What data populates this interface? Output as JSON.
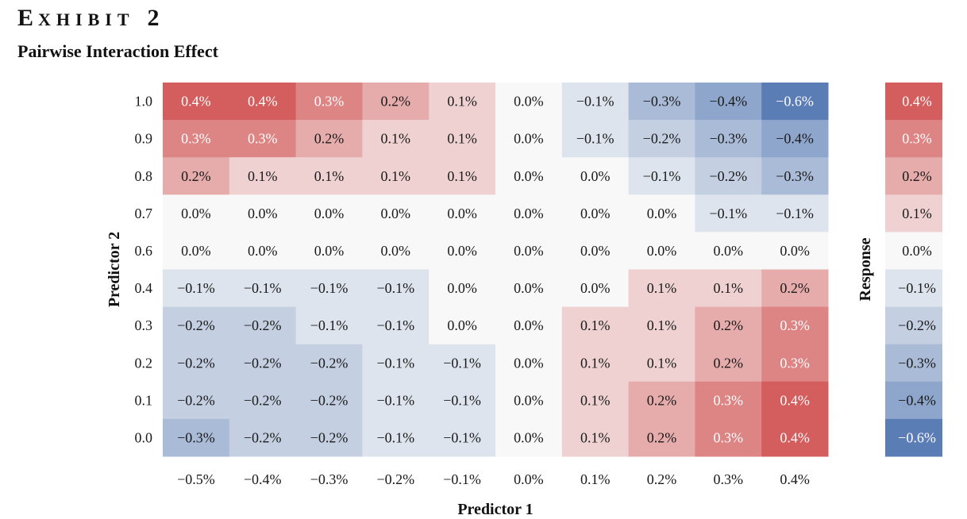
{
  "header": {
    "exhibit_word": "Exhibit",
    "exhibit_number": "2",
    "subtitle": "Pairwise Interaction Effect"
  },
  "colors": {
    "negative": "#5b7db6",
    "neutral": "#f8f8f8",
    "positive": "#d45d5d"
  },
  "chart_data": {
    "type": "heatmap",
    "title": "Pairwise Interaction Effect",
    "xlabel": "Predictor 1",
    "ylabel": "Predictor 2",
    "colorbar_label": "Response",
    "x_labels": [
      "−0.5%",
      "−0.4%",
      "−0.3%",
      "−0.2%",
      "−0.1%",
      "0.0%",
      "0.1%",
      "0.2%",
      "0.3%",
      "0.4%"
    ],
    "y_labels": [
      "1.0",
      "0.9",
      "0.8",
      "0.7",
      "0.6",
      "0.4",
      "0.3",
      "0.2",
      "0.1",
      "0.0"
    ],
    "values": [
      [
        0.4,
        0.4,
        0.3,
        0.2,
        0.1,
        0.0,
        -0.1,
        -0.3,
        -0.4,
        -0.6
      ],
      [
        0.3,
        0.3,
        0.2,
        0.1,
        0.1,
        0.0,
        -0.1,
        -0.2,
        -0.3,
        -0.4
      ],
      [
        0.2,
        0.1,
        0.1,
        0.1,
        0.1,
        0.0,
        0.0,
        -0.1,
        -0.2,
        -0.3
      ],
      [
        0.0,
        0.0,
        0.0,
        0.0,
        0.0,
        0.0,
        0.0,
        0.0,
        -0.1,
        -0.1
      ],
      [
        0.0,
        0.0,
        0.0,
        0.0,
        0.0,
        0.0,
        0.0,
        0.0,
        0.0,
        0.0
      ],
      [
        -0.1,
        -0.1,
        -0.1,
        -0.1,
        0.0,
        0.0,
        0.0,
        0.1,
        0.1,
        0.2
      ],
      [
        -0.2,
        -0.2,
        -0.1,
        -0.1,
        0.0,
        0.0,
        0.1,
        0.1,
        0.2,
        0.3
      ],
      [
        -0.2,
        -0.2,
        -0.2,
        -0.1,
        -0.1,
        0.0,
        0.1,
        0.1,
        0.2,
        0.3
      ],
      [
        -0.2,
        -0.2,
        -0.2,
        -0.1,
        -0.1,
        0.0,
        0.1,
        0.2,
        0.3,
        0.4
      ],
      [
        -0.3,
        -0.2,
        -0.2,
        -0.1,
        -0.1,
        0.0,
        0.1,
        0.2,
        0.3,
        0.4
      ]
    ],
    "colorbar_labels": [
      "0.4%",
      "0.3%",
      "0.2%",
      "0.1%",
      "0.0%",
      "−0.1%",
      "−0.2%",
      "−0.3%",
      "−0.4%",
      "−0.6%"
    ],
    "colorbar_values": [
      0.4,
      0.3,
      0.2,
      0.1,
      0.0,
      -0.1,
      -0.2,
      -0.3,
      -0.4,
      -0.6
    ],
    "value_format": "percent_1dp",
    "color_range": [
      -0.6,
      0.4
    ]
  }
}
